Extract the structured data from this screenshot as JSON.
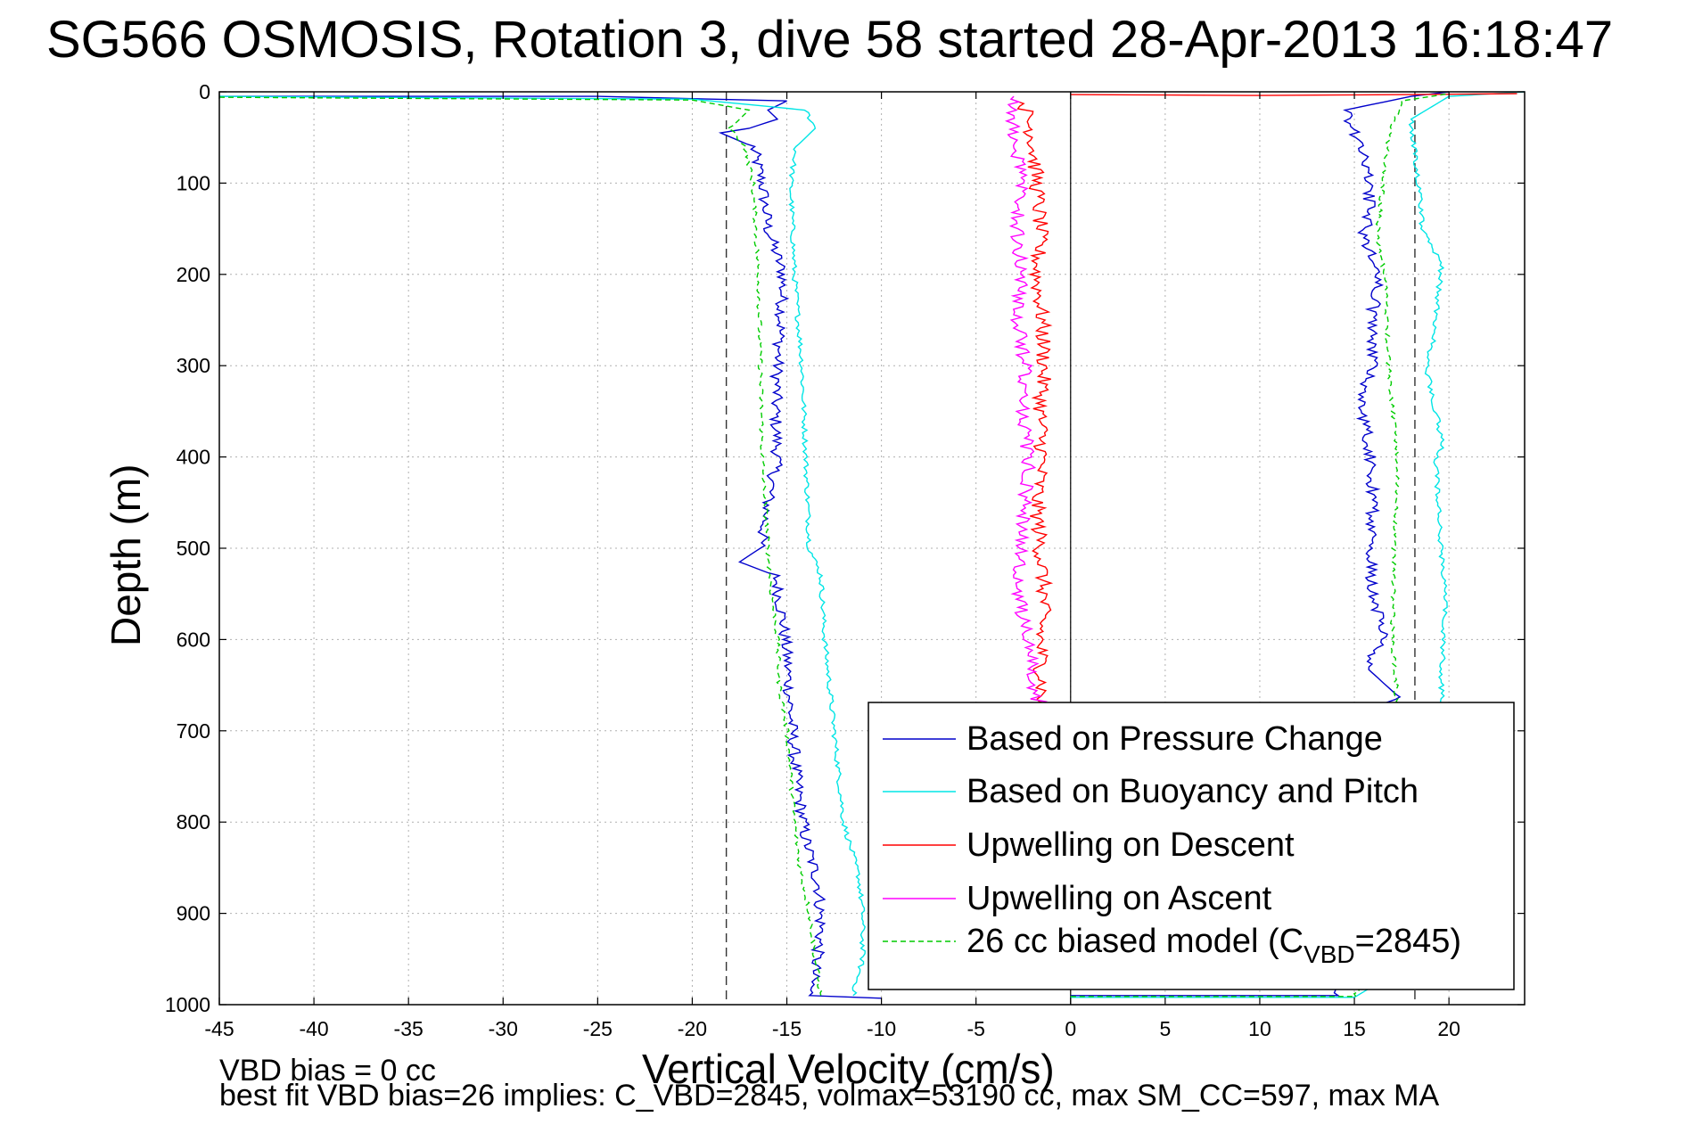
{
  "title": "SG566 OSMOSIS, Rotation 3, dive 58 started 28-Apr-2013 16:18:47",
  "notes": {
    "line1": "VBD bias = 0 cc",
    "line2": "best fit VBD bias=26 implies: C_VBD=2845, volmax=53190 cc, max SM_CC=597, max MA"
  },
  "chart_data": {
    "type": "line",
    "xlabel": "Vertical Velocity (cm/s)",
    "ylabel": "Depth (m)",
    "xlim": [
      -45,
      24
    ],
    "ylim": [
      1000,
      0
    ],
    "y_reversed": true,
    "grid": true,
    "xticks": [
      -45,
      -40,
      -35,
      -30,
      -25,
      -20,
      -15,
      -10,
      -5,
      0,
      5,
      10,
      15,
      20
    ],
    "yticks": [
      0,
      100,
      200,
      300,
      400,
      500,
      600,
      700,
      800,
      900,
      1000
    ],
    "reference_lines": {
      "vertical_dashed": [
        -18.2,
        18.2
      ],
      "vertical_solid": [
        0
      ]
    },
    "legend_position": "lower-right",
    "colors": {
      "pressure": "#0000cc",
      "buoyancy": "#00e5e5",
      "upwelling_descent": "#ff0000",
      "upwelling_ascent": "#ff00ff",
      "model": "#00cc00"
    },
    "series": [
      {
        "key": "pressure",
        "name": "Based on Pressure Change",
        "color": "#0000cc",
        "style": "solid",
        "segments": [
          {
            "points": [
              [
                -45,
                5
              ],
              [
                -25,
                5
              ],
              [
                -15,
                10
              ],
              [
                -16,
                20
              ],
              [
                -15.5,
                30
              ],
              [
                -17,
                40
              ],
              [
                -18.5,
                45
              ],
              [
                -16.8,
                60
              ],
              [
                -16.3,
                100
              ],
              [
                -16,
                150
              ],
              [
                -15.2,
                200
              ],
              [
                -15.3,
                250
              ],
              [
                -15.5,
                300
              ],
              [
                -15.6,
                350
              ],
              [
                -15.5,
                400
              ],
              [
                -16,
                450
              ],
              [
                -16.4,
                500
              ],
              [
                -17.5,
                515
              ],
              [
                -15.6,
                530
              ],
              [
                -15.2,
                580
              ],
              [
                -15,
                620
              ],
              [
                -14.8,
                680
              ],
              [
                -14.5,
                750
              ],
              [
                -14,
                820
              ],
              [
                -13.3,
                870
              ],
              [
                -13.2,
                920
              ],
              [
                -13.5,
                960
              ],
              [
                -13.8,
                990
              ],
              [
                -10,
                993
              ]
            ]
          },
          {
            "points": [
              [
                0,
                990
              ],
              [
                14,
                990
              ],
              [
                16.4,
                900
              ],
              [
                16.8,
                800
              ],
              [
                16.6,
                700
              ],
              [
                17.2,
                660
              ],
              [
                15.6,
                630
              ],
              [
                16.5,
                600
              ],
              [
                16,
                550
              ],
              [
                15.8,
                500
              ],
              [
                16,
                450
              ],
              [
                15.9,
                400
              ],
              [
                15.3,
                340
              ],
              [
                16,
                300
              ],
              [
                15.9,
                250
              ],
              [
                16.3,
                200
              ],
              [
                15.5,
                160
              ],
              [
                15.8,
                120
              ],
              [
                15.6,
                80
              ],
              [
                14.5,
                20
              ],
              [
                18,
                5
              ],
              [
                20,
                0
              ]
            ]
          }
        ]
      },
      {
        "key": "buoyancy",
        "name": "Based on Buoyancy and Pitch",
        "color": "#00e5e5",
        "style": "solid",
        "segments": [
          {
            "points": [
              [
                -45,
                5
              ],
              [
                -20,
                8
              ],
              [
                -14,
                20
              ],
              [
                -13.5,
                40
              ],
              [
                -14.5,
                60
              ],
              [
                -14.8,
                100
              ],
              [
                -14.6,
                200
              ],
              [
                -14.2,
                300
              ],
              [
                -14,
                400
              ],
              [
                -13.8,
                500
              ],
              [
                -13.2,
                530
              ],
              [
                -13,
                600
              ],
              [
                -12.5,
                700
              ],
              [
                -12,
                800
              ],
              [
                -11.2,
                860
              ],
              [
                -11,
                900
              ],
              [
                -11,
                950
              ],
              [
                -11.5,
                990
              ]
            ]
          },
          {
            "points": [
              [
                0,
                992
              ],
              [
                15,
                992
              ],
              [
                20,
                930
              ],
              [
                20,
                800
              ],
              [
                19.8,
                700
              ],
              [
                19.6,
                650
              ],
              [
                19.8,
                550
              ],
              [
                19.5,
                480
              ],
              [
                19.3,
                400
              ],
              [
                19.7,
                390
              ],
              [
                18.8,
                300
              ],
              [
                19.2,
                270
              ],
              [
                19.6,
                190
              ],
              [
                18.6,
                150
              ],
              [
                18.4,
                100
              ],
              [
                18,
                30
              ],
              [
                20,
                5
              ],
              [
                24,
                0
              ]
            ]
          }
        ]
      },
      {
        "key": "upwelling_descent",
        "name": "Upwelling on Descent",
        "color": "#ff0000",
        "style": "solid",
        "segments": [
          {
            "points": [
              [
                -2.5,
                10
              ],
              [
                -2,
                50
              ],
              [
                -1.8,
                100
              ],
              [
                -1.6,
                150
              ],
              [
                -1.8,
                200
              ],
              [
                -1.5,
                250
              ],
              [
                -1.4,
                300
              ],
              [
                -1.6,
                350
              ],
              [
                -1.5,
                400
              ],
              [
                -1.8,
                450
              ],
              [
                -1.6,
                500
              ],
              [
                -1.4,
                550
              ],
              [
                -1.6,
                600
              ],
              [
                -1.5,
                650
              ],
              [
                -1.6,
                680
              ]
            ]
          },
          {
            "points": [
              [
                0,
                3
              ],
              [
                10,
                4
              ],
              [
                18,
                3
              ],
              [
                23.6,
                2
              ]
            ]
          }
        ]
      },
      {
        "key": "upwelling_ascent",
        "name": "Upwelling on Ascent",
        "color": "#ff00ff",
        "style": "solid",
        "segments": [
          {
            "points": [
              [
                -1.5,
                680
              ],
              [
                -2,
                650
              ],
              [
                -2.2,
                600
              ],
              [
                -2.8,
                550
              ],
              [
                -2.6,
                500
              ],
              [
                -2.4,
                450
              ],
              [
                -2.2,
                400
              ],
              [
                -2.6,
                350
              ],
              [
                -2.4,
                300
              ],
              [
                -2.8,
                250
              ],
              [
                -2.6,
                200
              ],
              [
                -2.8,
                150
              ],
              [
                -2.6,
                100
              ],
              [
                -3,
                50
              ],
              [
                -3.2,
                20
              ],
              [
                -3,
                5
              ]
            ]
          }
        ]
      },
      {
        "key": "model",
        "name": "26 cc biased model (C",
        "name_sub": "VBD",
        "name_suffix": "=2845)",
        "color": "#00cc00",
        "style": "dashed",
        "segments": [
          {
            "points": [
              [
                -45,
                6
              ],
              [
                -20,
                9
              ],
              [
                -17,
                20
              ],
              [
                -18,
                40
              ],
              [
                -17.2,
                60
              ],
              [
                -16.8,
                100
              ],
              [
                -16.5,
                200
              ],
              [
                -16.4,
                300
              ],
              [
                -16.3,
                400
              ],
              [
                -16,
                500
              ],
              [
                -15.8,
                550
              ],
              [
                -15.5,
                600
              ],
              [
                -15.4,
                650
              ],
              [
                -15,
                700
              ],
              [
                -14.6,
                800
              ],
              [
                -14.3,
                850
              ],
              [
                -13.8,
                900
              ],
              [
                -13.5,
                950
              ],
              [
                -13.2,
                990
              ]
            ]
          },
          {
            "points": [
              [
                0,
                991
              ],
              [
                15,
                991
              ],
              [
                17.6,
                900
              ],
              [
                17.5,
                800
              ],
              [
                17.3,
                700
              ],
              [
                17.2,
                650
              ],
              [
                17,
                600
              ],
              [
                17.1,
                500
              ],
              [
                17.3,
                400
              ],
              [
                16.8,
                300
              ],
              [
                16.6,
                200
              ],
              [
                16.2,
                160
              ],
              [
                16.5,
                100
              ],
              [
                16.8,
                50
              ],
              [
                17.5,
                10
              ],
              [
                20,
                2
              ]
            ]
          }
        ]
      }
    ]
  }
}
